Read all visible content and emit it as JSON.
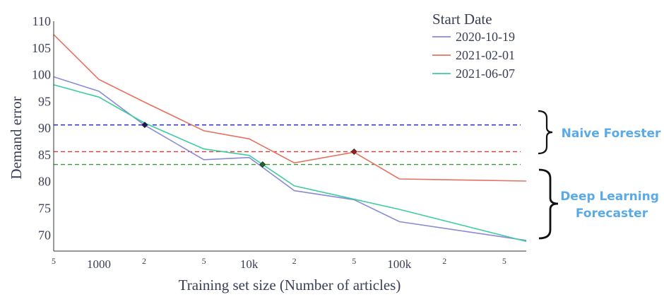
{
  "chart_data": {
    "type": "line",
    "xlabel": "Training set size (Number of articles)",
    "ylabel": "Demand error",
    "x_scale": "log",
    "xlim": [
      500,
      700000
    ],
    "ylim": [
      67,
      110
    ],
    "x_ticks": [
      {
        "value": 500,
        "label": "5"
      },
      {
        "value": 1000,
        "label": "1000"
      },
      {
        "value": 2000,
        "label": "2"
      },
      {
        "value": 5000,
        "label": "5"
      },
      {
        "value": 10000,
        "label": "10k"
      },
      {
        "value": 20000,
        "label": "2"
      },
      {
        "value": 50000,
        "label": "5"
      },
      {
        "value": 100000,
        "label": "100k"
      },
      {
        "value": 200000,
        "label": "2"
      },
      {
        "value": 500000,
        "label": "5"
      }
    ],
    "y_ticks": [
      110,
      105,
      100,
      95,
      90,
      85,
      80,
      75,
      70
    ],
    "legend": {
      "title": "Start Date",
      "position": "top-right"
    },
    "series": [
      {
        "name": "2020-10-19",
        "color": "#8a8ad6",
        "x": [
          500,
          1000,
          2000,
          5000,
          10000,
          20000,
          50000,
          100000,
          700000
        ],
        "y": [
          99.6,
          96.9,
          90.6,
          84.1,
          84.5,
          78.3,
          76.6,
          72.5,
          69.0
        ]
      },
      {
        "name": "2021-02-01",
        "color": "#e57260",
        "x": [
          500,
          1000,
          2000,
          5000,
          10000,
          20000,
          50000,
          100000,
          700000
        ],
        "y": [
          107.5,
          99.1,
          94.9,
          89.5,
          88.0,
          83.5,
          85.5,
          80.5,
          80.1
        ]
      },
      {
        "name": "2021-06-07",
        "color": "#3fcca0",
        "x": [
          500,
          1000,
          2000,
          5000,
          10000,
          20000,
          50000,
          100000,
          700000
        ],
        "y": [
          98.1,
          95.8,
          91.0,
          86.1,
          84.9,
          79.2,
          76.7,
          74.8,
          68.8
        ]
      }
    ],
    "reference_lines": [
      {
        "y": 90.6,
        "color": "#2a2ad6"
      },
      {
        "y": 85.6,
        "color": "#e03a3a"
      },
      {
        "y": 83.2,
        "color": "#3a9a3a"
      }
    ],
    "markers": [
      {
        "x": 2020,
        "y": 90.6,
        "color": "#1a1a5a"
      },
      {
        "x": 12300,
        "y": 83.2,
        "color": "#1e6a1e"
      },
      {
        "x": 50000,
        "y": 85.6,
        "color": "#a01c1c"
      }
    ],
    "annotations": [
      {
        "text": "Naive Forester",
        "color": "#5aaae6"
      },
      {
        "text": "Deep Learning\nForecaster",
        "color": "#5aaae6"
      }
    ]
  }
}
